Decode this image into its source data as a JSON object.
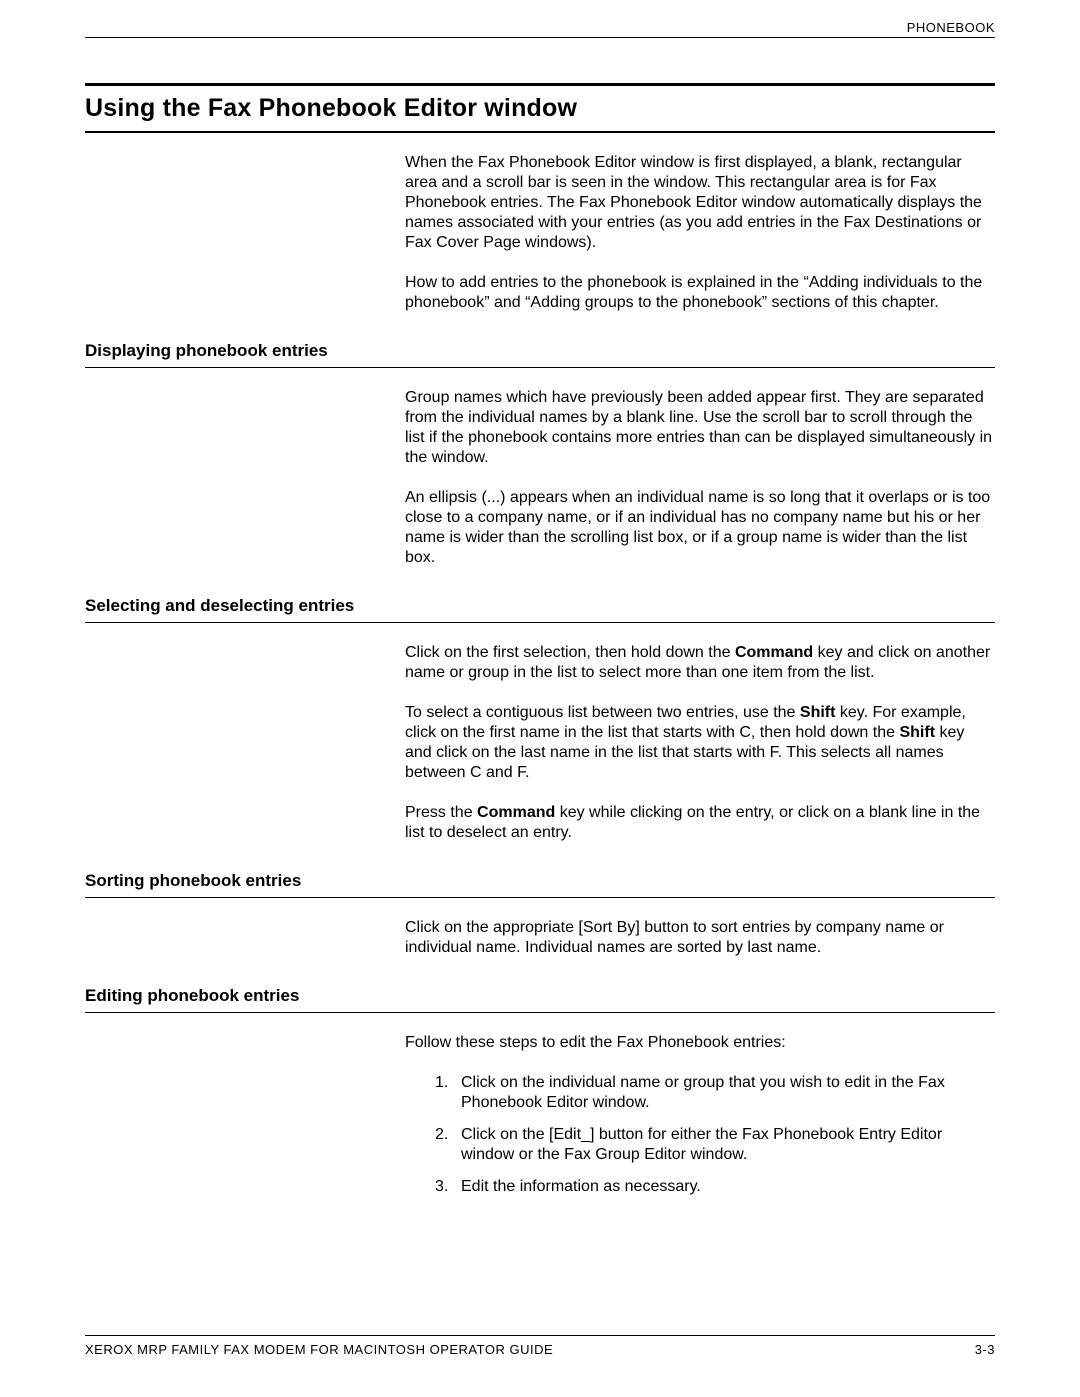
{
  "header": {
    "label": "PHONEBOOK"
  },
  "title": "Using the Fax Phonebook Editor window",
  "intro": {
    "p1": "When the Fax Phonebook Editor window is first displayed, a blank, rectangular area and a scroll bar is seen in the window. This rectangular area is for Fax Phonebook entries.  The Fax Phonebook Editor window automatically displays the names associated with your entries (as you add entries in the Fax Destinations or Fax Cover Page windows).",
    "p2": "How to add entries to the phonebook is explained in the “Adding individuals to the phonebook” and “Adding groups to the phonebook” sections of this chapter."
  },
  "sections": {
    "displaying": {
      "heading": "Displaying phonebook entries",
      "p1": "Group names which have previously been added appear first. They are separated from the individual names by a blank line. Use the scroll bar to scroll through the list if the phonebook contains more entries than can be displayed simultaneously in the window.",
      "p2": "An ellipsis (...) appears when an individual name is so long that it overlaps or is too close to a company name, or if an individual has no company name but his or her name is wider than the scrolling list box, or if a group name is wider than the list box."
    },
    "selecting": {
      "heading": "Selecting and deselecting entries",
      "p1_pre": "Click on the first selection, then hold down the ",
      "p1_bold1": "Command",
      "p1_post": " key and click on another name or group in the list to select more than one item from the list.",
      "p2_a": "To select a contiguous list between two entries, use the ",
      "p2_b1": "Shift",
      "p2_b": " key.  For example, click on the first name in the list that starts with C, then hold down the ",
      "p2_b2": "Shift",
      "p2_c": " key and click on the last name in the list that starts with F.  This selects all names between C and F.",
      "p3_a": "Press the ",
      "p3_b": "Command",
      "p3_c": " key while clicking on the entry, or click on a blank line in the list to deselect an entry."
    },
    "sorting": {
      "heading": "Sorting phonebook entries",
      "p1": "Click on the appropriate [Sort By] button to sort entries by company name or individual name.  Individual names are sorted by last name."
    },
    "editing": {
      "heading": "Editing phonebook entries",
      "p1": "Follow these steps to edit the Fax Phonebook entries:",
      "steps": {
        "s1": "Click on the individual name or group that you wish to edit in the Fax Phonebook Editor window.",
        "s2": "Click on the [Edit_] button for either the Fax Phonebook Entry Editor window or the Fax Group Editor window.",
        "s3": "Edit the information as necessary."
      }
    }
  },
  "footer": {
    "left": "XEROX MRP FAMILY FAX MODEM FOR MACINTOSH OPERATOR GUIDE",
    "right": "3-3"
  }
}
